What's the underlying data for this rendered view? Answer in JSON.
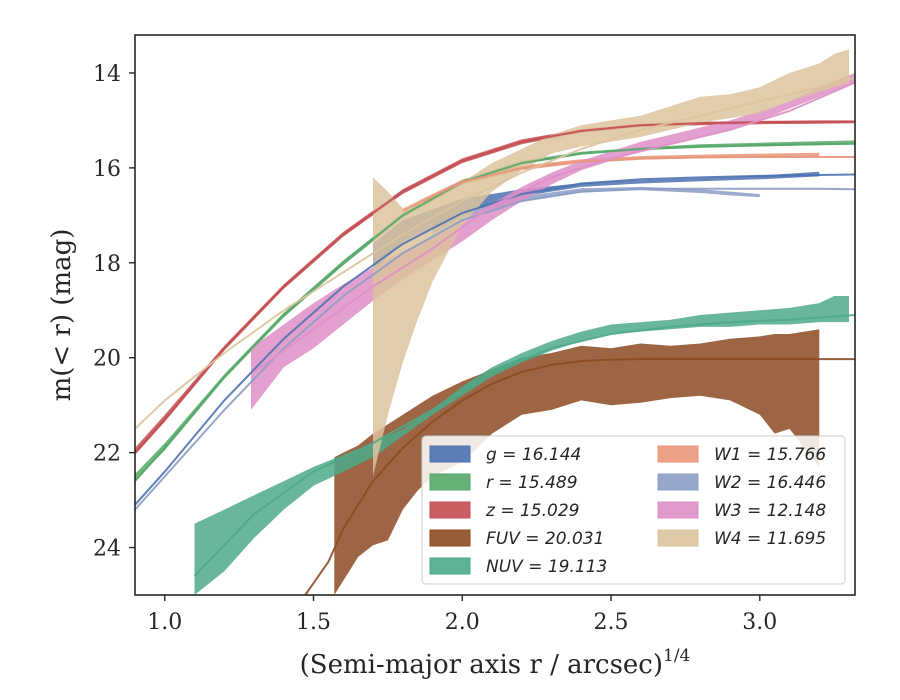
{
  "chart_data": {
    "type": "line",
    "xlabel": "(Semi-major axis r / arcsec)",
    "xlabel_exponent": "1/4",
    "ylabel": "m(< r) (mag)",
    "xlim": [
      0.9,
      3.32
    ],
    "ylim": [
      25.0,
      13.2
    ],
    "y_inverted": true,
    "x_ticks": [
      1.0,
      1.5,
      2.0,
      2.5,
      3.0
    ],
    "x_tick_labels": [
      "1.0",
      "1.5",
      "2.0",
      "2.5",
      "3.0"
    ],
    "y_ticks": [
      14,
      16,
      18,
      20,
      22,
      24
    ],
    "y_tick_labels": [
      "14",
      "16",
      "18",
      "20",
      "22",
      "24"
    ],
    "grid": false,
    "legend_position": "bottom-right",
    "legend_columns": 2,
    "series": [
      {
        "name": "g = 16.144",
        "symbol": "g",
        "value": "16.144",
        "color": "#4c72b0",
        "model": {
          "x": [
            0.9,
            1.0,
            1.2,
            1.4,
            1.6,
            1.8,
            2.0,
            2.2,
            2.4,
            2.6,
            2.8,
            3.0,
            3.2,
            3.32
          ],
          "y": [
            23.1,
            22.4,
            20.9,
            19.6,
            18.5,
            17.6,
            16.95,
            16.55,
            16.33,
            16.24,
            16.2,
            16.17,
            16.15,
            16.14
          ]
        },
        "band_x": [
          1.7,
          1.8,
          2.0,
          2.2,
          2.4,
          2.6,
          2.8,
          3.0,
          3.2
        ],
        "band_upper": [
          17.6,
          17.1,
          16.65,
          16.45,
          16.32,
          16.26,
          16.22,
          16.16,
          16.08
        ],
        "band_lower": [
          18.2,
          17.55,
          16.95,
          16.6,
          16.4,
          16.33,
          16.28,
          16.24,
          16.18
        ]
      },
      {
        "name": "r = 15.489",
        "symbol": "r",
        "value": "15.489",
        "color": "#55a868",
        "model": {
          "x": [
            0.9,
            1.0,
            1.2,
            1.4,
            1.6,
            1.8,
            2.0,
            2.2,
            2.4,
            2.6,
            2.8,
            3.0,
            3.2,
            3.32
          ],
          "y": [
            22.6,
            21.9,
            20.4,
            19.1,
            18.0,
            17.0,
            16.3,
            15.9,
            15.7,
            15.6,
            15.55,
            15.52,
            15.5,
            15.49
          ]
        },
        "band_x": [
          0.9,
          1.0,
          1.2,
          1.4,
          1.6,
          1.8,
          2.0,
          2.2,
          2.4,
          2.6,
          2.8,
          3.0,
          3.2,
          3.32
        ],
        "band_upper": [
          22.45,
          21.8,
          20.35,
          19.05,
          17.95,
          16.95,
          16.25,
          15.85,
          15.66,
          15.57,
          15.5,
          15.47,
          15.44,
          15.42
        ],
        "band_lower": [
          22.6,
          21.95,
          20.45,
          19.15,
          18.05,
          17.05,
          16.35,
          15.92,
          15.72,
          15.63,
          15.58,
          15.55,
          15.52,
          15.5
        ]
      },
      {
        "name": "z = 15.029",
        "symbol": "z",
        "value": "15.029",
        "color": "#c44e52",
        "model": {
          "x": [
            0.9,
            1.0,
            1.2,
            1.4,
            1.6,
            1.8,
            2.0,
            2.2,
            2.4,
            2.6,
            2.8,
            3.0,
            3.2,
            3.32
          ],
          "y": [
            22.0,
            21.3,
            19.8,
            18.5,
            17.4,
            16.5,
            15.85,
            15.45,
            15.22,
            15.1,
            15.06,
            15.04,
            15.03,
            15.03
          ]
        },
        "band_x": [
          0.9,
          1.0,
          1.2,
          1.4,
          1.6,
          1.8,
          2.0,
          2.2,
          2.4,
          2.6,
          2.8,
          3.0,
          3.2,
          3.32
        ],
        "band_upper": [
          21.9,
          21.2,
          19.75,
          18.45,
          17.35,
          16.45,
          15.8,
          15.4,
          15.18,
          15.07,
          15.03,
          15.01,
          15.0,
          15.0
        ],
        "band_lower": [
          22.05,
          21.35,
          19.85,
          18.55,
          17.45,
          16.55,
          15.9,
          15.5,
          15.26,
          15.14,
          15.1,
          15.08,
          15.07,
          15.06
        ]
      },
      {
        "name": "FUV = 20.031",
        "symbol": "FUV",
        "value": "20.031",
        "color": "#8c4a22",
        "model": {
          "x": [
            1.45,
            1.55,
            1.6,
            1.7,
            1.8,
            1.9,
            2.0,
            2.1,
            2.2,
            2.3,
            2.4,
            2.5,
            2.6,
            2.8,
            3.0,
            3.2,
            3.32
          ],
          "y": [
            25.2,
            24.3,
            23.6,
            22.6,
            21.9,
            21.35,
            20.9,
            20.55,
            20.3,
            20.15,
            20.07,
            20.04,
            20.03,
            20.03,
            20.03,
            20.03,
            20.03
          ]
        },
        "band_x": [
          1.57,
          1.6,
          1.65,
          1.7,
          1.75,
          1.8,
          1.85,
          1.9,
          2.0,
          2.1,
          2.2,
          2.3,
          2.4,
          2.5,
          2.6,
          2.7,
          2.8,
          2.9,
          3.0,
          3.05,
          3.1,
          3.15,
          3.2
        ],
        "band_upper": [
          22.1,
          22.0,
          21.85,
          21.6,
          21.4,
          21.2,
          21.0,
          20.8,
          20.5,
          20.25,
          20.0,
          19.9,
          19.75,
          19.8,
          19.7,
          19.75,
          19.7,
          19.6,
          19.55,
          19.5,
          19.5,
          19.45,
          19.4
        ],
        "band_lower": [
          25.0,
          24.7,
          24.2,
          23.95,
          23.85,
          23.2,
          22.8,
          22.5,
          22.2,
          21.6,
          21.2,
          21.1,
          20.9,
          21.0,
          20.95,
          20.85,
          20.8,
          20.9,
          21.2,
          21.6,
          21.5,
          21.9,
          22.3
        ]
      },
      {
        "name": "NUV = 19.113",
        "symbol": "NUV",
        "value": "19.113",
        "color": "#4daa8a",
        "model": {
          "x": [
            1.1,
            1.3,
            1.5,
            1.7,
            1.9,
            2.1,
            2.3,
            2.5,
            2.7,
            2.9,
            3.1,
            3.32
          ],
          "y": [
            24.6,
            23.3,
            22.4,
            21.8,
            21.1,
            20.3,
            19.8,
            19.5,
            19.35,
            19.25,
            19.2,
            19.1
          ]
        },
        "band_x": [
          1.1,
          1.2,
          1.3,
          1.4,
          1.5,
          1.6,
          1.7,
          1.8,
          1.9,
          2.0,
          2.1,
          2.2,
          2.3,
          2.4,
          2.5,
          2.6,
          2.7,
          2.8,
          2.9,
          3.0,
          3.1,
          3.2,
          3.25,
          3.28,
          3.3
        ],
        "band_upper": [
          23.5,
          23.2,
          22.9,
          22.6,
          22.3,
          22.05,
          21.8,
          21.5,
          21.1,
          20.6,
          20.2,
          19.9,
          19.65,
          19.45,
          19.3,
          19.25,
          19.2,
          19.1,
          19.05,
          19.0,
          18.95,
          18.85,
          18.7,
          18.7,
          18.7
        ],
        "band_lower": [
          25.0,
          24.5,
          23.8,
          23.2,
          22.7,
          22.4,
          22.1,
          21.65,
          21.2,
          20.8,
          20.4,
          20.1,
          19.85,
          19.65,
          19.5,
          19.45,
          19.4,
          19.35,
          19.35,
          19.3,
          19.3,
          19.25,
          19.25,
          19.25,
          19.25
        ]
      },
      {
        "name": "W1 = 15.766",
        "symbol": "W1",
        "value": "15.766",
        "color": "#e9967a",
        "model": {
          "x": [
            1.8,
            2.0,
            2.2,
            2.4,
            2.6,
            2.8,
            3.0,
            3.2,
            3.32
          ],
          "y": [
            16.9,
            16.3,
            16.0,
            15.86,
            15.8,
            15.78,
            15.77,
            15.77,
            15.77
          ]
        },
        "band_x": [
          1.85,
          2.0,
          2.2,
          2.4,
          2.6,
          2.8,
          3.0,
          3.2
        ],
        "band_upper": [
          16.7,
          16.25,
          15.95,
          15.82,
          15.75,
          15.72,
          15.7,
          15.68
        ],
        "band_lower": [
          16.85,
          16.35,
          16.05,
          15.9,
          15.83,
          15.8,
          15.78,
          15.76
        ]
      },
      {
        "name": "W2 = 16.446",
        "symbol": "W2",
        "value": "16.446",
        "color": "#8c9cc4",
        "model": {
          "x": [
            0.9,
            1.0,
            1.2,
            1.4,
            1.6,
            1.8,
            2.0,
            2.2,
            2.4,
            2.6,
            2.8,
            3.0,
            3.2,
            3.32
          ],
          "y": [
            23.2,
            22.5,
            21.1,
            19.8,
            18.7,
            17.8,
            17.1,
            16.7,
            16.5,
            16.44,
            16.44,
            16.44,
            16.44,
            16.45
          ]
        },
        "band_x": [
          1.9,
          2.0,
          2.2,
          2.4,
          2.6,
          2.8,
          2.9,
          3.0
        ],
        "band_upper": [
          17.25,
          16.95,
          16.6,
          16.43,
          16.4,
          16.45,
          16.5,
          16.55
        ],
        "band_lower": [
          17.4,
          17.05,
          16.7,
          16.52,
          16.47,
          16.53,
          16.58,
          16.62
        ]
      },
      {
        "name": "W3 = 12.148",
        "symbol": "W3",
        "value": "12.148",
        "color": "#de8fc7",
        "model": {
          "x": [
            1.3,
            1.5,
            1.7,
            1.9,
            2.1,
            2.3,
            2.5,
            2.7,
            2.9,
            3.1,
            3.32
          ],
          "y": [
            20.3,
            19.4,
            18.5,
            17.7,
            16.8,
            16.2,
            15.8,
            15.5,
            15.2,
            14.8,
            14.2
          ]
        },
        "band_x": [
          1.29,
          1.4,
          1.5,
          1.6,
          1.7,
          1.8,
          1.9,
          2.0,
          2.1,
          2.2,
          2.3,
          2.4,
          2.5,
          2.6,
          2.7,
          2.8,
          2.9,
          3.0,
          3.1,
          3.2,
          3.32
        ],
        "band_upper": [
          19.8,
          19.3,
          18.85,
          18.45,
          18.1,
          17.75,
          17.45,
          17.1,
          16.75,
          16.4,
          16.1,
          15.85,
          15.65,
          15.45,
          15.3,
          15.15,
          15.0,
          14.8,
          14.6,
          14.3,
          14.0
        ],
        "band_lower": [
          21.1,
          20.2,
          19.8,
          19.3,
          18.8,
          18.35,
          17.95,
          17.55,
          17.1,
          16.7,
          16.35,
          16.05,
          15.85,
          15.65,
          15.5,
          15.35,
          15.2,
          15.0,
          14.75,
          14.5,
          14.2
        ]
      },
      {
        "name": "W4 = 11.695",
        "symbol": "W4",
        "value": "11.695",
        "color": "#dcc39d",
        "model": {
          "x": [
            0.9,
            1.0,
            1.2,
            1.4,
            1.6,
            1.8,
            2.0,
            2.2,
            2.4,
            2.6,
            2.8,
            3.0,
            3.2,
            3.32
          ],
          "y": [
            21.5,
            20.9,
            19.9,
            19.0,
            18.2,
            17.4,
            16.7,
            16.1,
            15.6,
            15.2,
            14.9,
            14.6,
            14.3,
            14.1
          ]
        },
        "band_x": [
          1.7,
          1.75,
          1.8,
          1.85,
          1.9,
          2.0,
          2.1,
          2.2,
          2.3,
          2.4,
          2.5,
          2.6,
          2.7,
          2.8,
          2.9,
          3.0,
          3.1,
          3.2,
          3.25,
          3.3
        ],
        "band_upper": [
          16.2,
          16.5,
          16.85,
          16.7,
          16.6,
          16.3,
          15.9,
          15.6,
          15.3,
          15.1,
          15.0,
          14.9,
          14.7,
          14.5,
          14.45,
          14.3,
          14.0,
          13.8,
          13.6,
          13.5
        ],
        "band_lower": [
          22.5,
          21.2,
          20.1,
          19.2,
          18.4,
          17.2,
          16.5,
          16.05,
          15.7,
          15.55,
          15.45,
          15.35,
          15.2,
          15.05,
          14.95,
          14.85,
          14.6,
          14.4,
          14.3,
          14.2
        ]
      }
    ]
  }
}
